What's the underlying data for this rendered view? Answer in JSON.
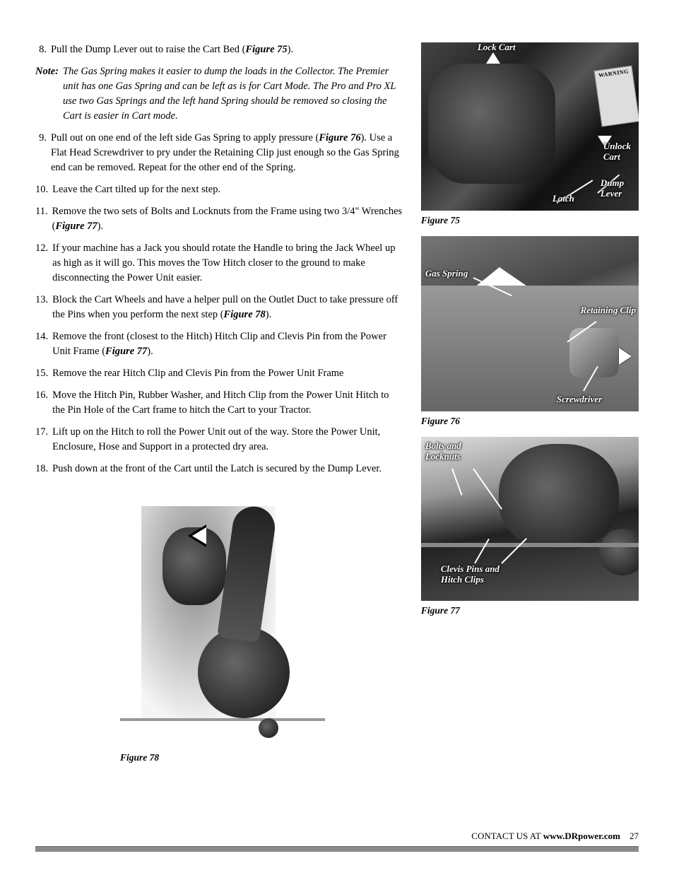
{
  "steps": [
    {
      "num": "8.",
      "text": "Pull the Dump Lever out to raise the Cart Bed (",
      "ref": "Figure 75",
      "tail": ")."
    },
    {
      "note": true,
      "label": "Note:",
      "text": "The Gas Spring makes it easier to dump the loads in the Collector.  The Premier unit has one Gas Spring and can be left as is for Cart Mode.  The Pro and Pro XL use two Gas Springs and the left hand Spring should be removed so closing the Cart is easier in Cart mode."
    },
    {
      "num": "9.",
      "text": "Pull out on one end of the left side Gas Spring to apply pressure (",
      "ref": "Figure 76",
      "tail": "). Use a Flat Head Screwdriver to pry under the Retaining Clip just enough so the Gas Spring end can be removed.  Repeat for the other end of the Spring."
    },
    {
      "num": "10.",
      "text": "Leave the Cart tilted up for the next step."
    },
    {
      "num": "11.",
      "text": "Remove the two sets of Bolts and Locknuts from the Frame using two 3/4\" Wrenches (",
      "ref": "Figure 77",
      "tail": ")."
    },
    {
      "num": "12.",
      "text": "If your machine has a Jack you should rotate the Handle to bring the Jack Wheel up as high as it will go.  This moves the Tow Hitch closer to the ground to make disconnecting the Power Unit easier."
    },
    {
      "num": "13.",
      "text": "Block the Cart Wheels and have a helper pull on the Outlet Duct to take pressure off the Pins when you perform the next step (",
      "ref": "Figure 78",
      "tail": ")."
    },
    {
      "num": "14.",
      "text": "Remove the front (closest to the Hitch) Hitch Clip and Clevis Pin from the Power Unit Frame (",
      "ref": "Figure 77",
      "tail": ")."
    },
    {
      "num": "15.",
      "text": "Remove the rear Hitch Clip and Clevis Pin from the Power Unit Frame"
    },
    {
      "num": "16.",
      "text": "Move the Hitch Pin, Rubber Washer, and Hitch Clip from the Power Unit Hitch to the Pin Hole of the Cart frame to hitch the Cart to your Tractor."
    },
    {
      "num": "17.",
      "text": "Lift up on the Hitch to roll the Power Unit out of the way.  Store the Power Unit, Enclosure, Hose and Support in a protected dry area."
    },
    {
      "num": "18.",
      "text": "Push down at the front of the Cart until the Latch is secured by the Dump Lever."
    }
  ],
  "fig75": {
    "caption": "Figure 75",
    "labels": {
      "lock": "Lock Cart",
      "unlock": "Unlock Cart",
      "dump": "Dump Lever",
      "latch": "Latch"
    }
  },
  "fig76": {
    "caption": "Figure 76",
    "labels": {
      "gas": "Gas Spring",
      "retain": "Retaining Clip",
      "screw": "Screwdriver"
    }
  },
  "fig77": {
    "caption": "Figure 77",
    "labels": {
      "bolts": "Bolts and Locknuts",
      "clevis": "Clevis Pins and Hitch Clips"
    }
  },
  "fig78": {
    "caption": "Figure 78"
  },
  "footer": {
    "prefix": "CONTACT US AT ",
    "bold": "www.DRpower.com",
    "page": "27"
  },
  "colors": {
    "text": "#000000",
    "overlay": "#ffffff",
    "footer_bar": "#8a8a8a"
  }
}
